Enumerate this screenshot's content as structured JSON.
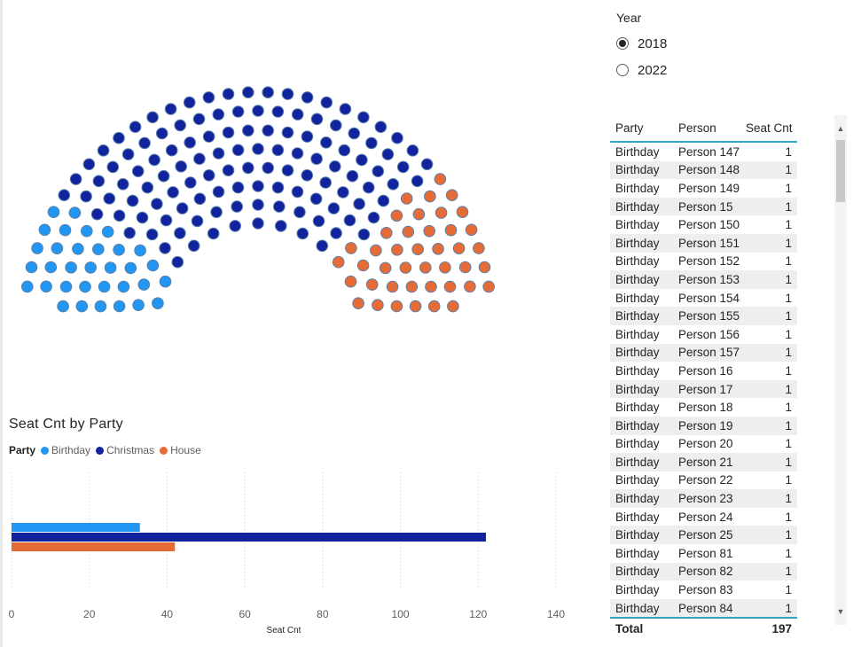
{
  "colors": {
    "Birthday": "#2196f3",
    "Christmas": "#12239e",
    "House": "#e66c37"
  },
  "slicer": {
    "title": "Year",
    "options": [
      {
        "label": "2018",
        "selected": true
      },
      {
        "label": "2022",
        "selected": false
      }
    ]
  },
  "parliament": {
    "seats": {
      "Birthday": 33,
      "Christmas": 122,
      "House": 42
    }
  },
  "chart": {
    "title": "Seat Cnt by Party",
    "legend_title": "Party",
    "legend": [
      "Birthday",
      "Christmas",
      "House"
    ]
  },
  "chart_data": {
    "type": "bar",
    "orientation": "horizontal",
    "title": "Seat Cnt by Party",
    "xlabel": "Seat Cnt",
    "ylabel": "",
    "xlim": [
      0,
      140
    ],
    "xticks": [
      0,
      20,
      40,
      60,
      80,
      100,
      120,
      140
    ],
    "grid": true,
    "legend_placement": "top-left",
    "series": [
      {
        "name": "Birthday",
        "values": [
          33
        ]
      },
      {
        "name": "Christmas",
        "values": [
          122
        ]
      },
      {
        "name": "House",
        "values": [
          42
        ]
      }
    ]
  },
  "table": {
    "columns": [
      "Party",
      "Person",
      "Seat Cnt"
    ],
    "rows": [
      [
        "Birthday",
        "Person 147",
        "1"
      ],
      [
        "Birthday",
        "Person 148",
        "1"
      ],
      [
        "Birthday",
        "Person 149",
        "1"
      ],
      [
        "Birthday",
        "Person 15",
        "1"
      ],
      [
        "Birthday",
        "Person 150",
        "1"
      ],
      [
        "Birthday",
        "Person 151",
        "1"
      ],
      [
        "Birthday",
        "Person 152",
        "1"
      ],
      [
        "Birthday",
        "Person 153",
        "1"
      ],
      [
        "Birthday",
        "Person 154",
        "1"
      ],
      [
        "Birthday",
        "Person 155",
        "1"
      ],
      [
        "Birthday",
        "Person 156",
        "1"
      ],
      [
        "Birthday",
        "Person 157",
        "1"
      ],
      [
        "Birthday",
        "Person 16",
        "1"
      ],
      [
        "Birthday",
        "Person 17",
        "1"
      ],
      [
        "Birthday",
        "Person 18",
        "1"
      ],
      [
        "Birthday",
        "Person 19",
        "1"
      ],
      [
        "Birthday",
        "Person 20",
        "1"
      ],
      [
        "Birthday",
        "Person 21",
        "1"
      ],
      [
        "Birthday",
        "Person 22",
        "1"
      ],
      [
        "Birthday",
        "Person 23",
        "1"
      ],
      [
        "Birthday",
        "Person 24",
        "1"
      ],
      [
        "Birthday",
        "Person 25",
        "1"
      ],
      [
        "Birthday",
        "Person 81",
        "1"
      ],
      [
        "Birthday",
        "Person 82",
        "1"
      ],
      [
        "Birthday",
        "Person 83",
        "1"
      ],
      [
        "Birthday",
        "Person 84",
        "1"
      ]
    ],
    "total_label": "Total",
    "total_value": "197"
  },
  "scrollbar": {
    "up_icon": "chevron-up-icon",
    "down_icon": "chevron-down-icon"
  }
}
